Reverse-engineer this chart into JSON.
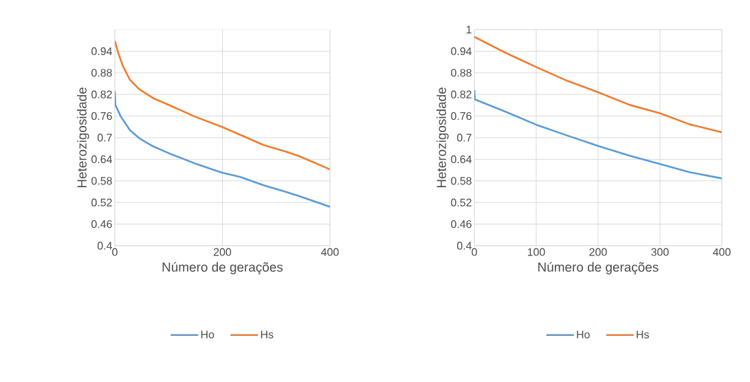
{
  "chart_data": [
    {
      "type": "line",
      "xlabel": "Número de gerações",
      "ylabel": "Heterozigosidade",
      "xlim": [
        0,
        400
      ],
      "xticks": [
        0,
        200,
        400
      ],
      "ylim": [
        0.4,
        1.0
      ],
      "yticks": [
        0.4,
        0.46,
        0.52,
        0.58,
        0.64,
        0.7,
        0.76,
        0.82,
        0.88,
        0.94
      ],
      "grid": true,
      "legend": "bottom",
      "series": [
        {
          "name": "Ho",
          "color": "#5b9bd5",
          "x": [
            0,
            1,
            11,
            28,
            45,
            71,
            105,
            148,
            199,
            233,
            276,
            319,
            344,
            400
          ],
          "values": [
            0.829,
            0.791,
            0.759,
            0.721,
            0.699,
            0.676,
            0.654,
            0.629,
            0.603,
            0.591,
            0.568,
            0.549,
            0.537,
            0.508
          ]
        },
        {
          "name": "Hs",
          "color": "#ed7d31",
          "x": [
            0,
            6,
            15,
            28,
            45,
            71,
            105,
            148,
            199,
            233,
            276,
            319,
            344,
            400
          ],
          "values": [
            0.969,
            0.937,
            0.899,
            0.861,
            0.835,
            0.81,
            0.788,
            0.759,
            0.73,
            0.708,
            0.68,
            0.661,
            0.648,
            0.612
          ]
        }
      ]
    },
    {
      "type": "line",
      "xlabel": "Número de gerações",
      "ylabel": "Heterozigosidade",
      "xlim": [
        0,
        400
      ],
      "xticks": [
        0,
        100,
        200,
        300,
        400
      ],
      "ylim": [
        0.4,
        1.0
      ],
      "yticks": [
        0.4,
        0.46,
        0.52,
        0.58,
        0.64,
        0.7,
        0.76,
        0.82,
        0.88,
        0.94,
        1
      ],
      "grid": true,
      "legend": "bottom",
      "series": [
        {
          "name": "Ho",
          "color": "#5b9bd5",
          "x": [
            0,
            1,
            49,
            100,
            150,
            200,
            251,
            300,
            348,
            400
          ],
          "values": [
            0.832,
            0.806,
            0.773,
            0.736,
            0.706,
            0.677,
            0.65,
            0.627,
            0.604,
            0.587
          ]
        },
        {
          "name": "Hs",
          "color": "#ed7d31",
          "x": [
            0,
            49,
            100,
            150,
            200,
            251,
            300,
            348,
            400
          ],
          "values": [
            0.98,
            0.937,
            0.896,
            0.858,
            0.826,
            0.791,
            0.768,
            0.737,
            0.715
          ]
        }
      ]
    }
  ]
}
